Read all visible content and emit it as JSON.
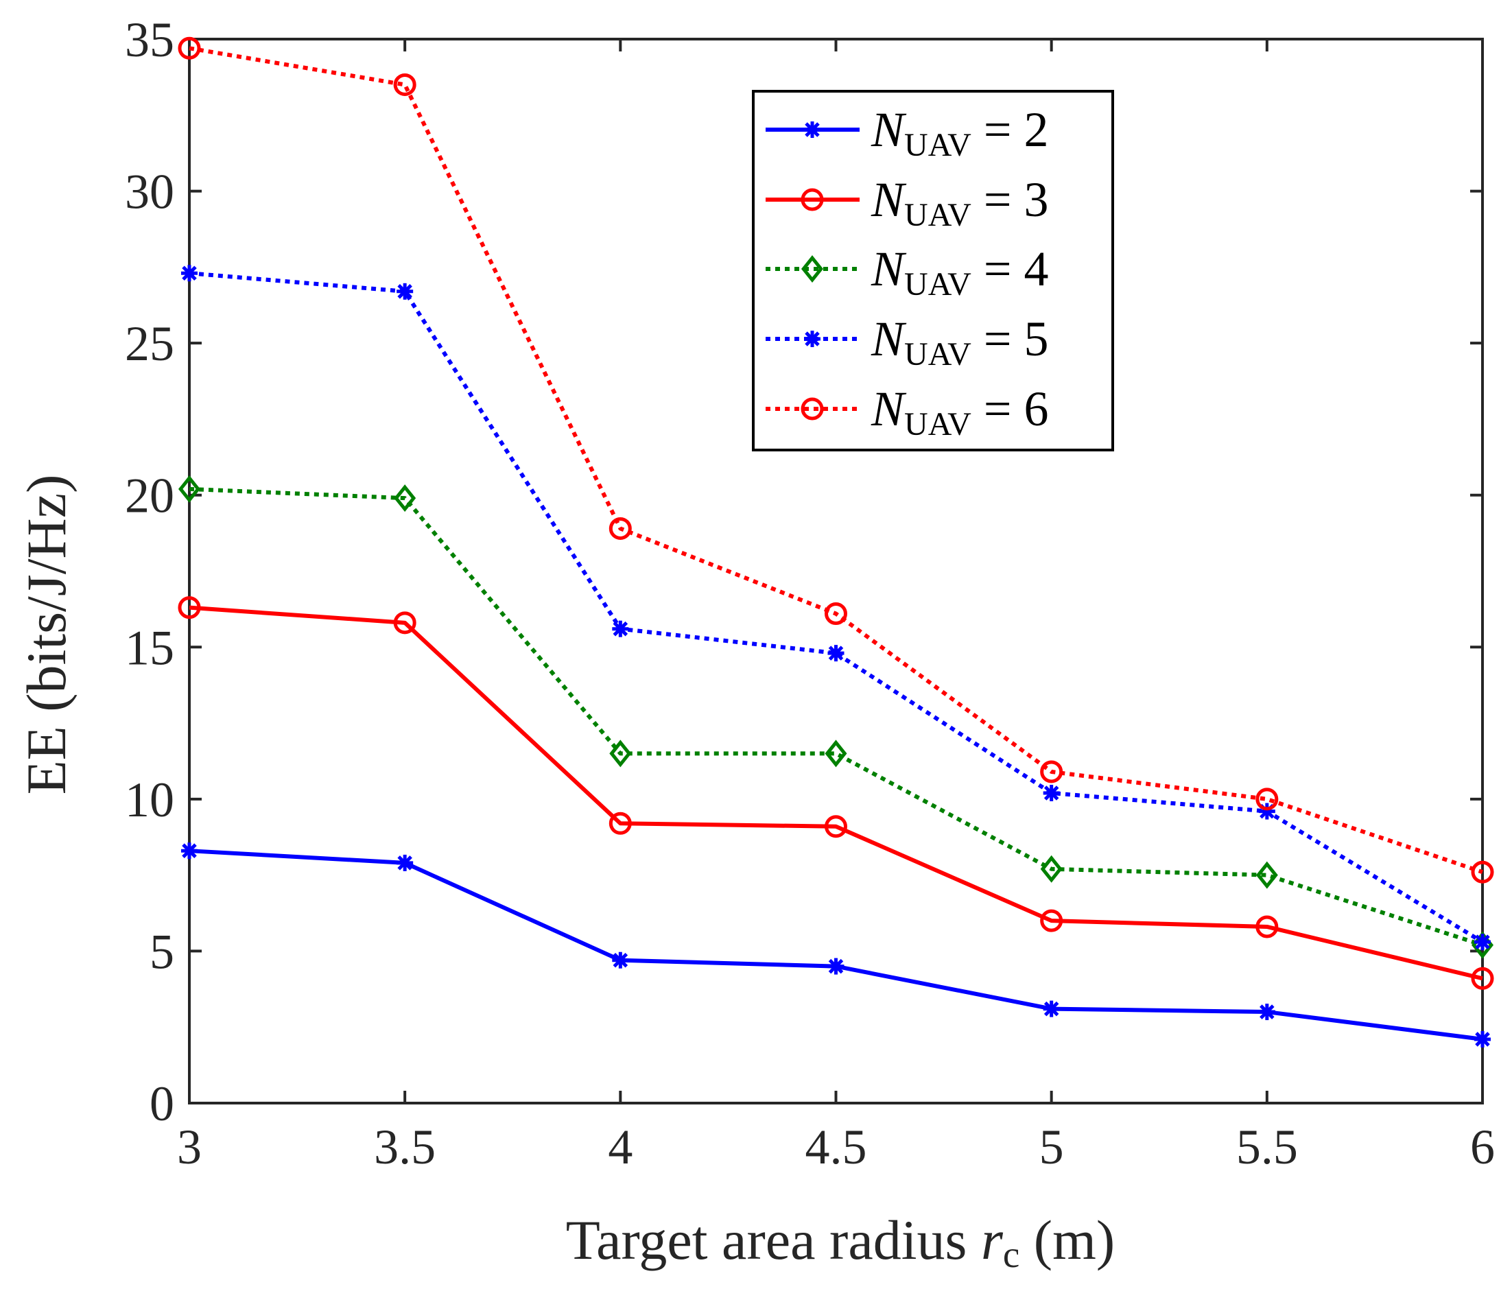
{
  "chart_data": {
    "type": "line",
    "title": "",
    "xlabel": "Target area radius r_c (m)",
    "ylabel": "EE (bits/J/Hz)",
    "xlabel_parts": {
      "main": "Target area radius ",
      "var": "r",
      "sub": "c",
      "unit": " (m)"
    },
    "xlim": [
      3,
      6
    ],
    "ylim": [
      0,
      35
    ],
    "xticks": [
      3,
      3.5,
      4,
      4.5,
      5,
      5.5,
      6
    ],
    "xtick_labels": [
      "3",
      "3.5",
      "4",
      "4.5",
      "5",
      "5.5",
      "6"
    ],
    "yticks": [
      0,
      5,
      10,
      15,
      20,
      25,
      30,
      35
    ],
    "ytick_labels": [
      "0",
      "5",
      "10",
      "15",
      "20",
      "25",
      "30",
      "35"
    ],
    "grid": false,
    "legend_position": "top-right",
    "x": [
      3,
      3.5,
      4,
      4.5,
      5,
      5.5,
      6
    ],
    "series": [
      {
        "name": "N_UAV = 2",
        "var": "N",
        "sub": "UAV",
        "rhs": "= 2",
        "color": "#0000ff",
        "line": "solid",
        "marker": "asterisk",
        "values": [
          8.3,
          7.9,
          4.7,
          4.5,
          3.1,
          3.0,
          2.1
        ]
      },
      {
        "name": "N_UAV = 3",
        "var": "N",
        "sub": "UAV",
        "rhs": "= 3",
        "color": "#ff0000",
        "line": "solid",
        "marker": "circle",
        "values": [
          16.3,
          15.8,
          9.2,
          9.1,
          6.0,
          5.8,
          4.1
        ]
      },
      {
        "name": "N_UAV = 4",
        "var": "N",
        "sub": "UAV",
        "rhs": "= 4",
        "color": "#008000",
        "line": "dotted",
        "marker": "diamond",
        "values": [
          20.2,
          19.9,
          11.5,
          11.5,
          7.7,
          7.5,
          5.2
        ]
      },
      {
        "name": "N_UAV = 5",
        "var": "N",
        "sub": "UAV",
        "rhs": "= 5",
        "color": "#0000ff",
        "line": "dotted",
        "marker": "asterisk",
        "values": [
          27.3,
          26.7,
          15.6,
          14.8,
          10.2,
          9.6,
          5.3
        ]
      },
      {
        "name": "N_UAV = 6",
        "var": "N",
        "sub": "UAV",
        "rhs": "= 6",
        "color": "#ff0000",
        "line": "dotted",
        "marker": "circle",
        "values": [
          34.7,
          33.5,
          18.9,
          16.1,
          10.9,
          10.0,
          7.6
        ]
      }
    ]
  }
}
